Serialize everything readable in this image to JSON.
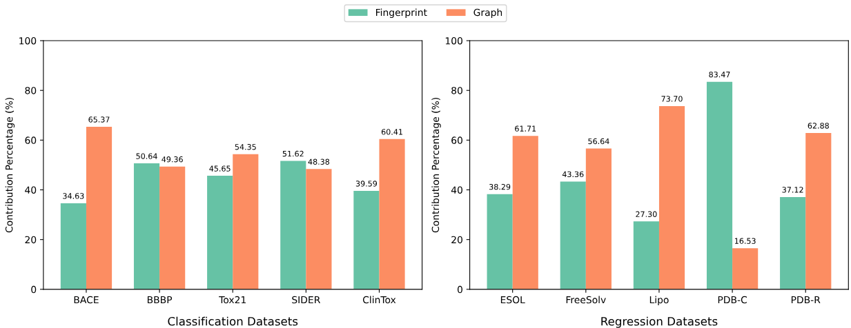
{
  "chart_data": [
    {
      "type": "bar",
      "xlabel": "Classification Datasets",
      "ylabel": "Contribution Percentage (%)",
      "categories": [
        "BACE",
        "BBBP",
        "Tox21",
        "SIDER",
        "ClinTox"
      ],
      "series": [
        {
          "name": "Fingerprint",
          "color": "#66c2a5",
          "values": [
            34.63,
            50.64,
            45.65,
            51.62,
            39.59
          ],
          "value_labels": [
            "34.63",
            "50.64",
            "45.65",
            "51.62",
            "39.59"
          ]
        },
        {
          "name": "Graph",
          "color": "#fc8d62",
          "values": [
            65.37,
            49.36,
            54.35,
            48.38,
            60.41
          ],
          "value_labels": [
            "65.37",
            "49.36",
            "54.35",
            "48.38",
            "60.41"
          ]
        }
      ],
      "ylim": [
        0,
        100
      ],
      "yticks": [
        0,
        20,
        40,
        60,
        80,
        100
      ],
      "grid": false,
      "legend": "top"
    },
    {
      "type": "bar",
      "xlabel": "Regression Datasets",
      "ylabel": "Contribution Percentage (%)",
      "categories": [
        "ESOL",
        "FreeSolv",
        "Lipo",
        "PDB-C",
        "PDB-R"
      ],
      "series": [
        {
          "color": "#66c2a5",
          "values": [
            38.29,
            43.36,
            27.3,
            83.47,
            37.12
          ],
          "value_labels": [
            "38.29",
            "43.36",
            "27.30",
            "83.47",
            "37.12"
          ]
        },
        {
          "color": "#fc8d62",
          "values": [
            61.71,
            56.64,
            73.7,
            16.53,
            62.88
          ],
          "value_labels": [
            "61.71",
            "56.64",
            "73.70",
            "16.53",
            "62.88"
          ]
        }
      ],
      "ylim": [
        0,
        100
      ],
      "yticks": [
        0,
        20,
        40,
        60,
        80,
        100
      ],
      "grid": false
    }
  ]
}
